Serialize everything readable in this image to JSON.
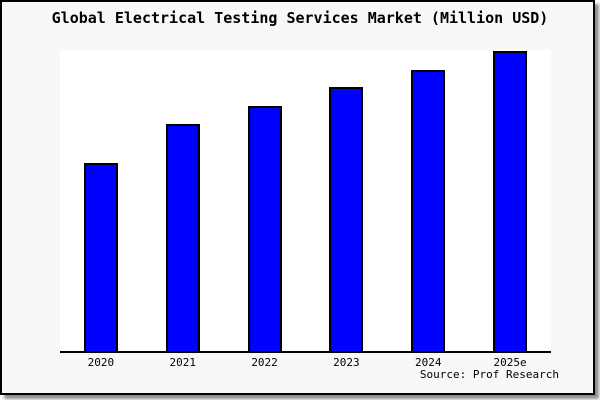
{
  "title": "Global Electrical Testing Services Market (Million USD)",
  "source_note": "Source: Prof Research",
  "colors": {
    "panel_background": "#f8f8f8",
    "plot_background": "#ffffff",
    "bar_fill": "#0000ff",
    "bar_border": "#000000",
    "axis_line": "#000000",
    "frame_border": "#000000",
    "text": "#000000"
  },
  "chart_data": {
    "type": "bar",
    "title": "Global Electrical Testing Services Market (Million USD)",
    "categories": [
      "2020",
      "2021",
      "2022",
      "2023",
      "2024",
      "2025e"
    ],
    "values": [
      188,
      227,
      245,
      264,
      281,
      300
    ],
    "values_note": "y-axis has no scale or tick labels; values are relative bar heights read from the chart (pixels above baseline)",
    "xlabel": "",
    "ylabel": "Million USD",
    "grid": false,
    "legend": false,
    "bar_color": "#0000ff",
    "bar_border_color": "#000000"
  }
}
